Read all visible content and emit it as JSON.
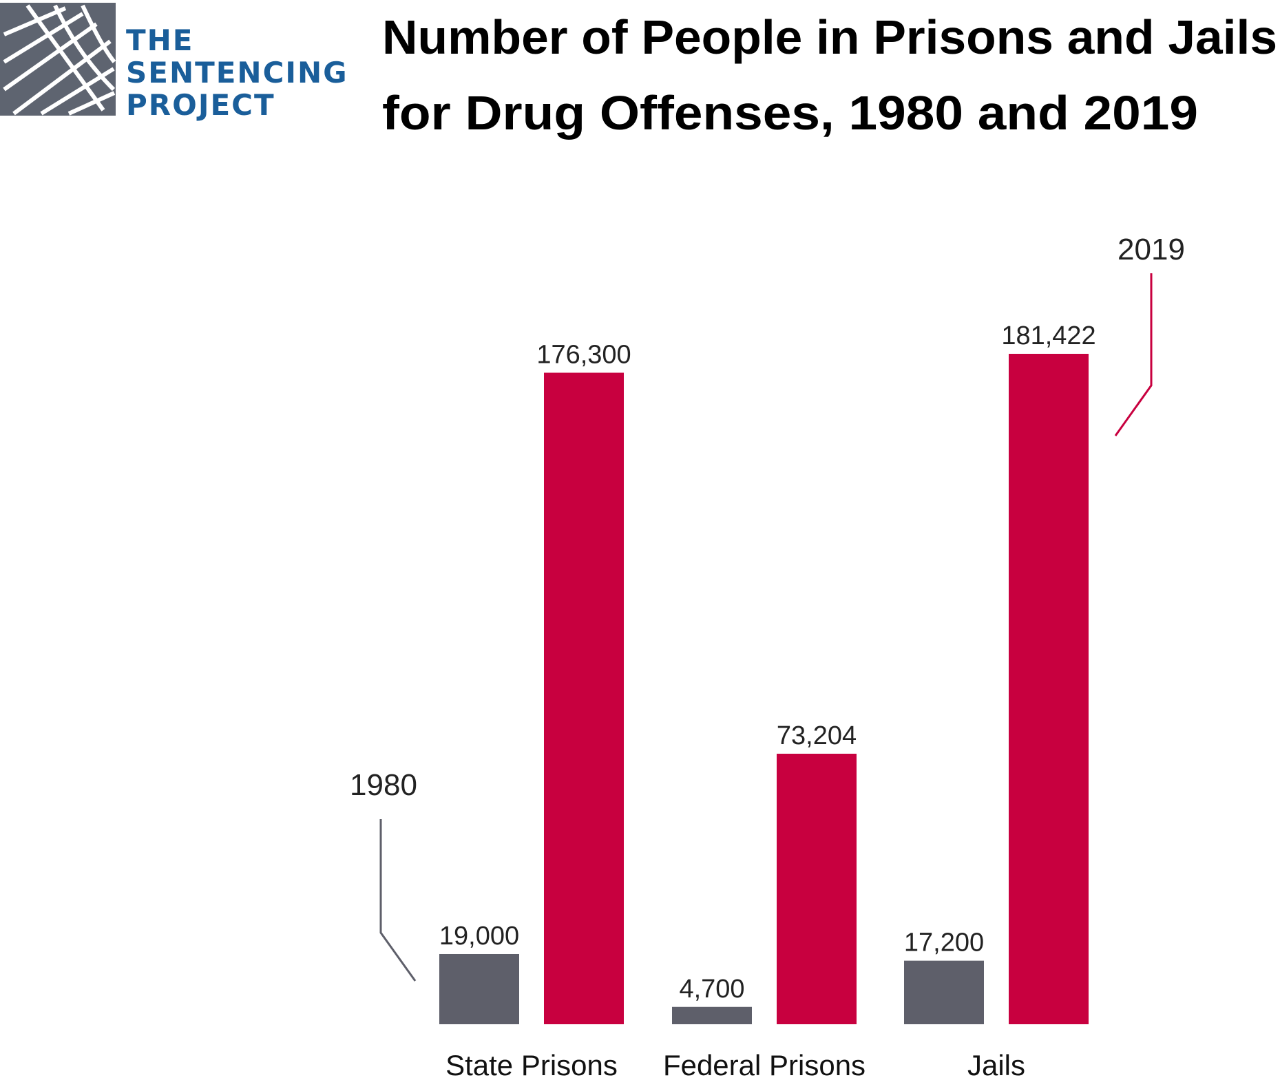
{
  "logo": {
    "lines": [
      "THE",
      "SENTENCING",
      "PROJECT"
    ],
    "icon": "sentencing-project-grid-logo-icon"
  },
  "chart_data": {
    "type": "bar",
    "title_lines": [
      "Number of People in Prisons and Jails",
      "for Drug Offenses, 1980 and 2019"
    ],
    "categories": [
      "State Prisons",
      "Federal Prisons",
      "Jails"
    ],
    "series": [
      {
        "name": "1980",
        "values": [
          19000,
          4700,
          17200
        ],
        "labels": [
          "19,000",
          "4,700",
          "17,200"
        ],
        "color": "#5e5f6a"
      },
      {
        "name": "2019",
        "values": [
          176300,
          73204,
          181422
        ],
        "labels": [
          "176,300",
          "73,204",
          "181,422"
        ],
        "color": "#c8003f"
      }
    ],
    "ylim": [
      0,
      181422
    ],
    "xlabel": "",
    "ylabel": "",
    "grid": false,
    "legend": "direct-labels"
  },
  "colors": {
    "brand_blue": "#1a5e9a",
    "logo_gray": "#5e6470",
    "bar_1980": "#5e5f6a",
    "bar_2019": "#c8003f"
  }
}
